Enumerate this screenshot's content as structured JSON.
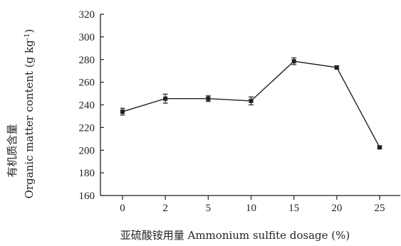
{
  "chart_data": {
    "type": "line",
    "categories": [
      "0",
      "2",
      "5",
      "10",
      "15",
      "20",
      "25"
    ],
    "series": [
      {
        "values": [
          234,
          245.5,
          245.5,
          243.5,
          278.5,
          273,
          202.5
        ],
        "errors": [
          3,
          4,
          2.5,
          3.5,
          3,
          1.5,
          1
        ]
      }
    ],
    "xlabel": "亚硫酸铵用量 Ammonium sulfite dosage (%)",
    "ylabel_cn": "有机质含量",
    "ylabel_en": "Organic matter content (g kg",
    "ylabel_unit_sup": "-1",
    "ylabel_en_close": ")",
    "ylim": [
      160,
      320
    ],
    "yticks": [
      "160",
      "180",
      "200",
      "220",
      "240",
      "260",
      "280",
      "300",
      "320"
    ],
    "grid": false,
    "colors": {
      "series": "#222222",
      "axis": "#222222"
    }
  }
}
